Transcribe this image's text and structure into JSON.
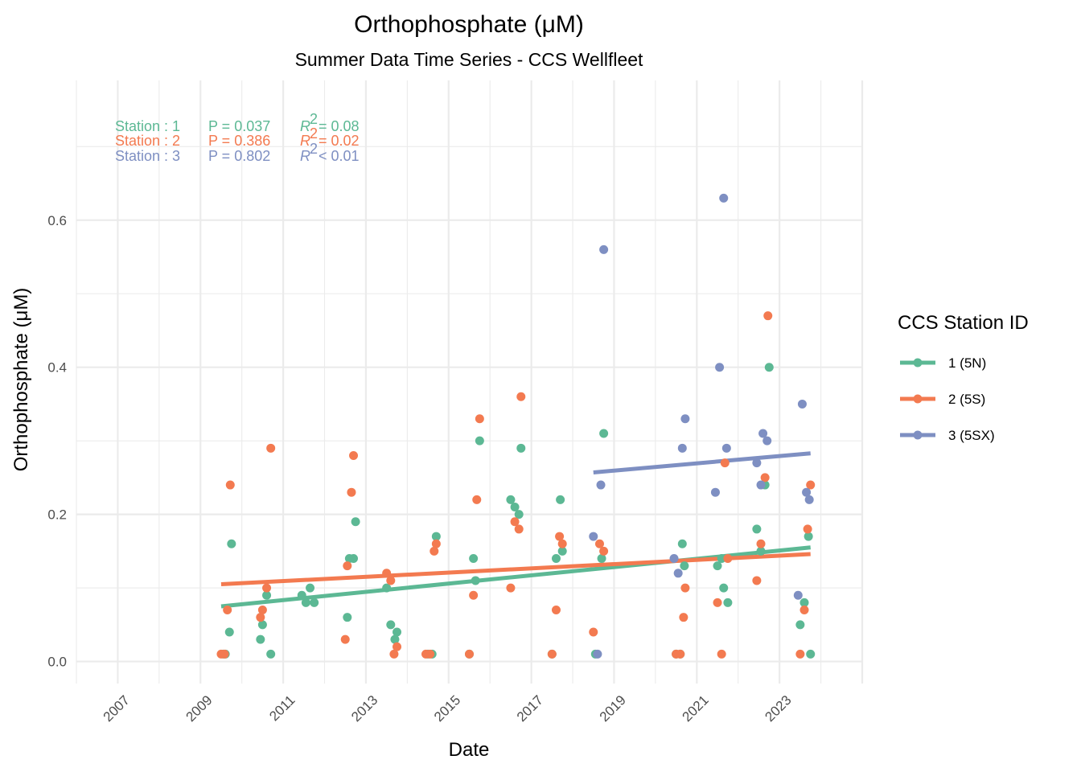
{
  "chart_data": {
    "type": "scatter",
    "title": "Orthophosphate (μM)",
    "subtitle": "Summer Data Time Series - CCS Wellfleet",
    "xlabel": "Date",
    "ylabel": "Orthophosphate (μM)",
    "xlim": [
      2006,
      2025
    ],
    "ylim": [
      -0.03,
      0.79
    ],
    "x_ticks": [
      "2007",
      "2009",
      "2011",
      "2013",
      "2015",
      "2017",
      "2019",
      "2021",
      "2023"
    ],
    "y_ticks": [
      "0.0",
      "0.2",
      "0.4",
      "0.6"
    ],
    "grid": true,
    "legend": {
      "title": "CCS Station ID",
      "position": "right",
      "entries": [
        "1 (5N)",
        "2 (5S)",
        "3 (5SX)"
      ]
    },
    "annotations": [
      {
        "station": "Station : 1",
        "p": "P = 0.037",
        "r2_label": "R",
        "r2_value": "= 0.08",
        "color": "#5cb894"
      },
      {
        "station": "Station : 2",
        "p": "P = 0.386",
        "r2_label": "R",
        "r2_value": "= 0.02",
        "color": "#f37a50"
      },
      {
        "station": "Station : 3",
        "p": "P = 0.802",
        "r2_label": "R",
        "r2_value": "< 0.01",
        "color": "#7e8fc2"
      }
    ],
    "series": [
      {
        "name": "1 (5N)",
        "color": "#5cb894",
        "trend": {
          "x": [
            2009.5,
            2023.75
          ],
          "y": [
            0.075,
            0.155
          ]
        },
        "points": [
          [
            2009.55,
            0.01
          ],
          [
            2009.6,
            0.01
          ],
          [
            2009.7,
            0.04
          ],
          [
            2009.75,
            0.16
          ],
          [
            2010.45,
            0.03
          ],
          [
            2010.5,
            0.05
          ],
          [
            2010.6,
            0.09
          ],
          [
            2010.7,
            0.01
          ],
          [
            2011.45,
            0.09
          ],
          [
            2011.55,
            0.08
          ],
          [
            2011.65,
            0.1
          ],
          [
            2011.75,
            0.08
          ],
          [
            2012.55,
            0.06
          ],
          [
            2012.6,
            0.14
          ],
          [
            2012.7,
            0.14
          ],
          [
            2012.75,
            0.19
          ],
          [
            2013.5,
            0.1
          ],
          [
            2013.6,
            0.05
          ],
          [
            2013.7,
            0.03
          ],
          [
            2013.75,
            0.04
          ],
          [
            2014.5,
            0.01
          ],
          [
            2014.6,
            0.01
          ],
          [
            2014.7,
            0.17
          ],
          [
            2015.5,
            0.01
          ],
          [
            2015.6,
            0.14
          ],
          [
            2015.65,
            0.11
          ],
          [
            2015.75,
            0.3
          ],
          [
            2016.5,
            0.22
          ],
          [
            2016.6,
            0.21
          ],
          [
            2016.7,
            0.2
          ],
          [
            2016.75,
            0.29
          ],
          [
            2017.5,
            0.01
          ],
          [
            2017.6,
            0.14
          ],
          [
            2017.7,
            0.22
          ],
          [
            2017.75,
            0.15
          ],
          [
            2018.55,
            0.01
          ],
          [
            2018.7,
            0.14
          ],
          [
            2018.75,
            0.31
          ],
          [
            2020.5,
            0.01
          ],
          [
            2020.6,
            0.01
          ],
          [
            2020.65,
            0.16
          ],
          [
            2020.7,
            0.13
          ],
          [
            2021.5,
            0.13
          ],
          [
            2021.6,
            0.14
          ],
          [
            2021.65,
            0.1
          ],
          [
            2021.75,
            0.08
          ],
          [
            2022.45,
            0.18
          ],
          [
            2022.55,
            0.15
          ],
          [
            2022.65,
            0.24
          ],
          [
            2022.75,
            0.4
          ],
          [
            2023.5,
            0.05
          ],
          [
            2023.6,
            0.08
          ],
          [
            2023.7,
            0.17
          ],
          [
            2023.75,
            0.01
          ]
        ]
      },
      {
        "name": "2 (5S)",
        "color": "#f37a50",
        "trend": {
          "x": [
            2009.5,
            2023.75
          ],
          "y": [
            0.105,
            0.146
          ]
        },
        "points": [
          [
            2009.5,
            0.01
          ],
          [
            2009.58,
            0.01
          ],
          [
            2009.65,
            0.07
          ],
          [
            2009.72,
            0.24
          ],
          [
            2010.45,
            0.06
          ],
          [
            2010.5,
            0.07
          ],
          [
            2010.6,
            0.1
          ],
          [
            2010.7,
            0.29
          ],
          [
            2012.5,
            0.03
          ],
          [
            2012.55,
            0.13
          ],
          [
            2012.65,
            0.23
          ],
          [
            2012.7,
            0.28
          ],
          [
            2013.5,
            0.12
          ],
          [
            2013.6,
            0.11
          ],
          [
            2013.68,
            0.01
          ],
          [
            2013.75,
            0.02
          ],
          [
            2014.45,
            0.01
          ],
          [
            2014.55,
            0.01
          ],
          [
            2014.65,
            0.15
          ],
          [
            2014.7,
            0.16
          ],
          [
            2015.5,
            0.01
          ],
          [
            2015.6,
            0.09
          ],
          [
            2015.68,
            0.22
          ],
          [
            2015.75,
            0.33
          ],
          [
            2016.5,
            0.1
          ],
          [
            2016.6,
            0.19
          ],
          [
            2016.7,
            0.18
          ],
          [
            2016.75,
            0.36
          ],
          [
            2017.5,
            0.01
          ],
          [
            2017.6,
            0.07
          ],
          [
            2017.68,
            0.17
          ],
          [
            2017.75,
            0.16
          ],
          [
            2018.5,
            0.04
          ],
          [
            2018.65,
            0.16
          ],
          [
            2018.75,
            0.15
          ],
          [
            2020.5,
            0.01
          ],
          [
            2020.6,
            0.01
          ],
          [
            2020.68,
            0.06
          ],
          [
            2020.72,
            0.1
          ],
          [
            2021.5,
            0.08
          ],
          [
            2021.6,
            0.01
          ],
          [
            2021.68,
            0.27
          ],
          [
            2021.75,
            0.14
          ],
          [
            2022.45,
            0.11
          ],
          [
            2022.55,
            0.16
          ],
          [
            2022.65,
            0.25
          ],
          [
            2022.72,
            0.47
          ],
          [
            2023.5,
            0.01
          ],
          [
            2023.6,
            0.07
          ],
          [
            2023.68,
            0.18
          ],
          [
            2023.75,
            0.24
          ]
        ]
      },
      {
        "name": "3 (5SX)",
        "color": "#7e8fc2",
        "trend": {
          "x": [
            2018.5,
            2023.75
          ],
          "y": [
            0.257,
            0.283
          ]
        },
        "points": [
          [
            2018.5,
            0.17
          ],
          [
            2018.6,
            0.01
          ],
          [
            2018.68,
            0.24
          ],
          [
            2018.75,
            0.56
          ],
          [
            2020.45,
            0.14
          ],
          [
            2020.55,
            0.12
          ],
          [
            2020.65,
            0.29
          ],
          [
            2020.72,
            0.33
          ],
          [
            2021.45,
            0.23
          ],
          [
            2021.55,
            0.4
          ],
          [
            2021.65,
            0.63
          ],
          [
            2021.72,
            0.29
          ],
          [
            2022.45,
            0.27
          ],
          [
            2022.55,
            0.24
          ],
          [
            2022.6,
            0.31
          ],
          [
            2022.7,
            0.3
          ],
          [
            2023.45,
            0.09
          ],
          [
            2023.55,
            0.35
          ],
          [
            2023.65,
            0.23
          ],
          [
            2023.72,
            0.22
          ]
        ]
      }
    ]
  }
}
